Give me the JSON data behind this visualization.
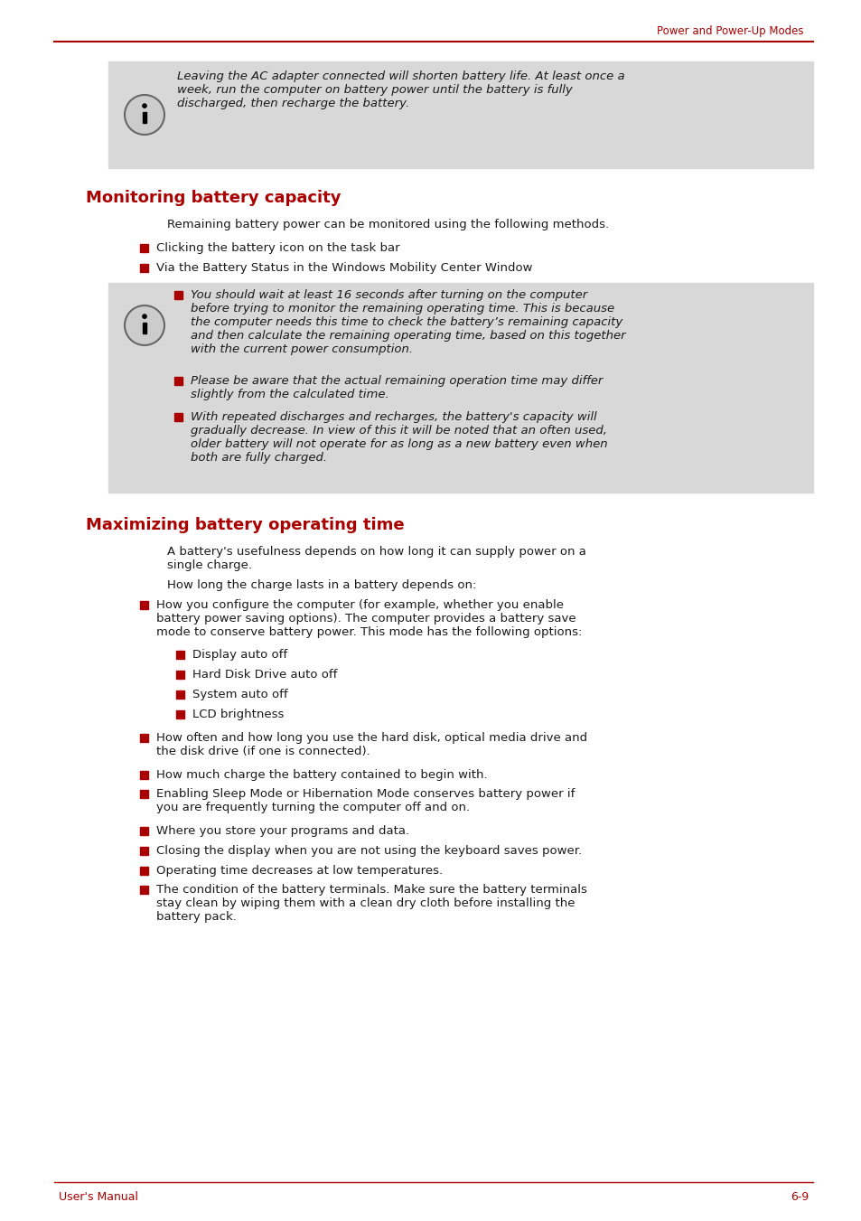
{
  "page_width": 9.54,
  "page_height": 13.51,
  "dpi": 100,
  "bg_color": "#ffffff",
  "red_color": "#aa0000",
  "gray_bg": "#d8d8d8",
  "text_color": "#1a1a1a",
  "header_text": "Power and Power-Up Modes",
  "footer_left": "User's Manual",
  "footer_right": "6-9",
  "info_box1_text": "Leaving the AC adapter connected will shorten battery life. At least once a\nweek, run the computer on battery power until the battery is fully\ndischarged, then recharge the battery.",
  "section1_title": "Monitoring battery capacity",
  "section1_intro": "Remaining battery power can be monitored using the following methods.",
  "section1_bullets": [
    "Clicking the battery icon on the task bar",
    "Via the Battery Status in the Windows Mobility Center Window"
  ],
  "info_box2_bullets": [
    "You should wait at least 16 seconds after turning on the computer\nbefore trying to monitor the remaining operating time. This is because\nthe computer needs this time to check the battery’s remaining capacity\nand then calculate the remaining operating time, based on this together\nwith the current power consumption.",
    "Please be aware that the actual remaining operation time may differ\nslightly from the calculated time.",
    "With repeated discharges and recharges, the battery's capacity will\ngradually decrease. In view of this it will be noted that an often used,\nolder battery will not operate for as long as a new battery even when\nboth are fully charged."
  ],
  "section2_title": "Maximizing battery operating time",
  "section2_intro1": "A battery's usefulness depends on how long it can supply power on a\nsingle charge.",
  "section2_intro2": "How long the charge lasts in a battery depends on:",
  "section2_bullet1_text": "How you configure the computer (for example, whether you enable\nbattery power saving options). The computer provides a battery save\nmode to conserve battery power. This mode has the following options:",
  "section2_sub_bullets": [
    "Display auto off",
    "Hard Disk Drive auto off",
    "System auto off",
    "LCD brightness"
  ],
  "section2_bullets_rest": [
    "How often and how long you use the hard disk, optical media drive and\nthe disk drive (if one is connected).",
    "How much charge the battery contained to begin with.",
    "Enabling Sleep Mode or Hibernation Mode conserves battery power if\nyou are frequently turning the computer off and on.",
    "Where you store your programs and data.",
    "Closing the display when you are not using the keyboard saves power.",
    "Operating time decreases at low temperatures.",
    "The condition of the battery terminals. Make sure the battery terminals\nstay clean by wiping them with a clean dry cloth before installing the\nbattery pack."
  ]
}
